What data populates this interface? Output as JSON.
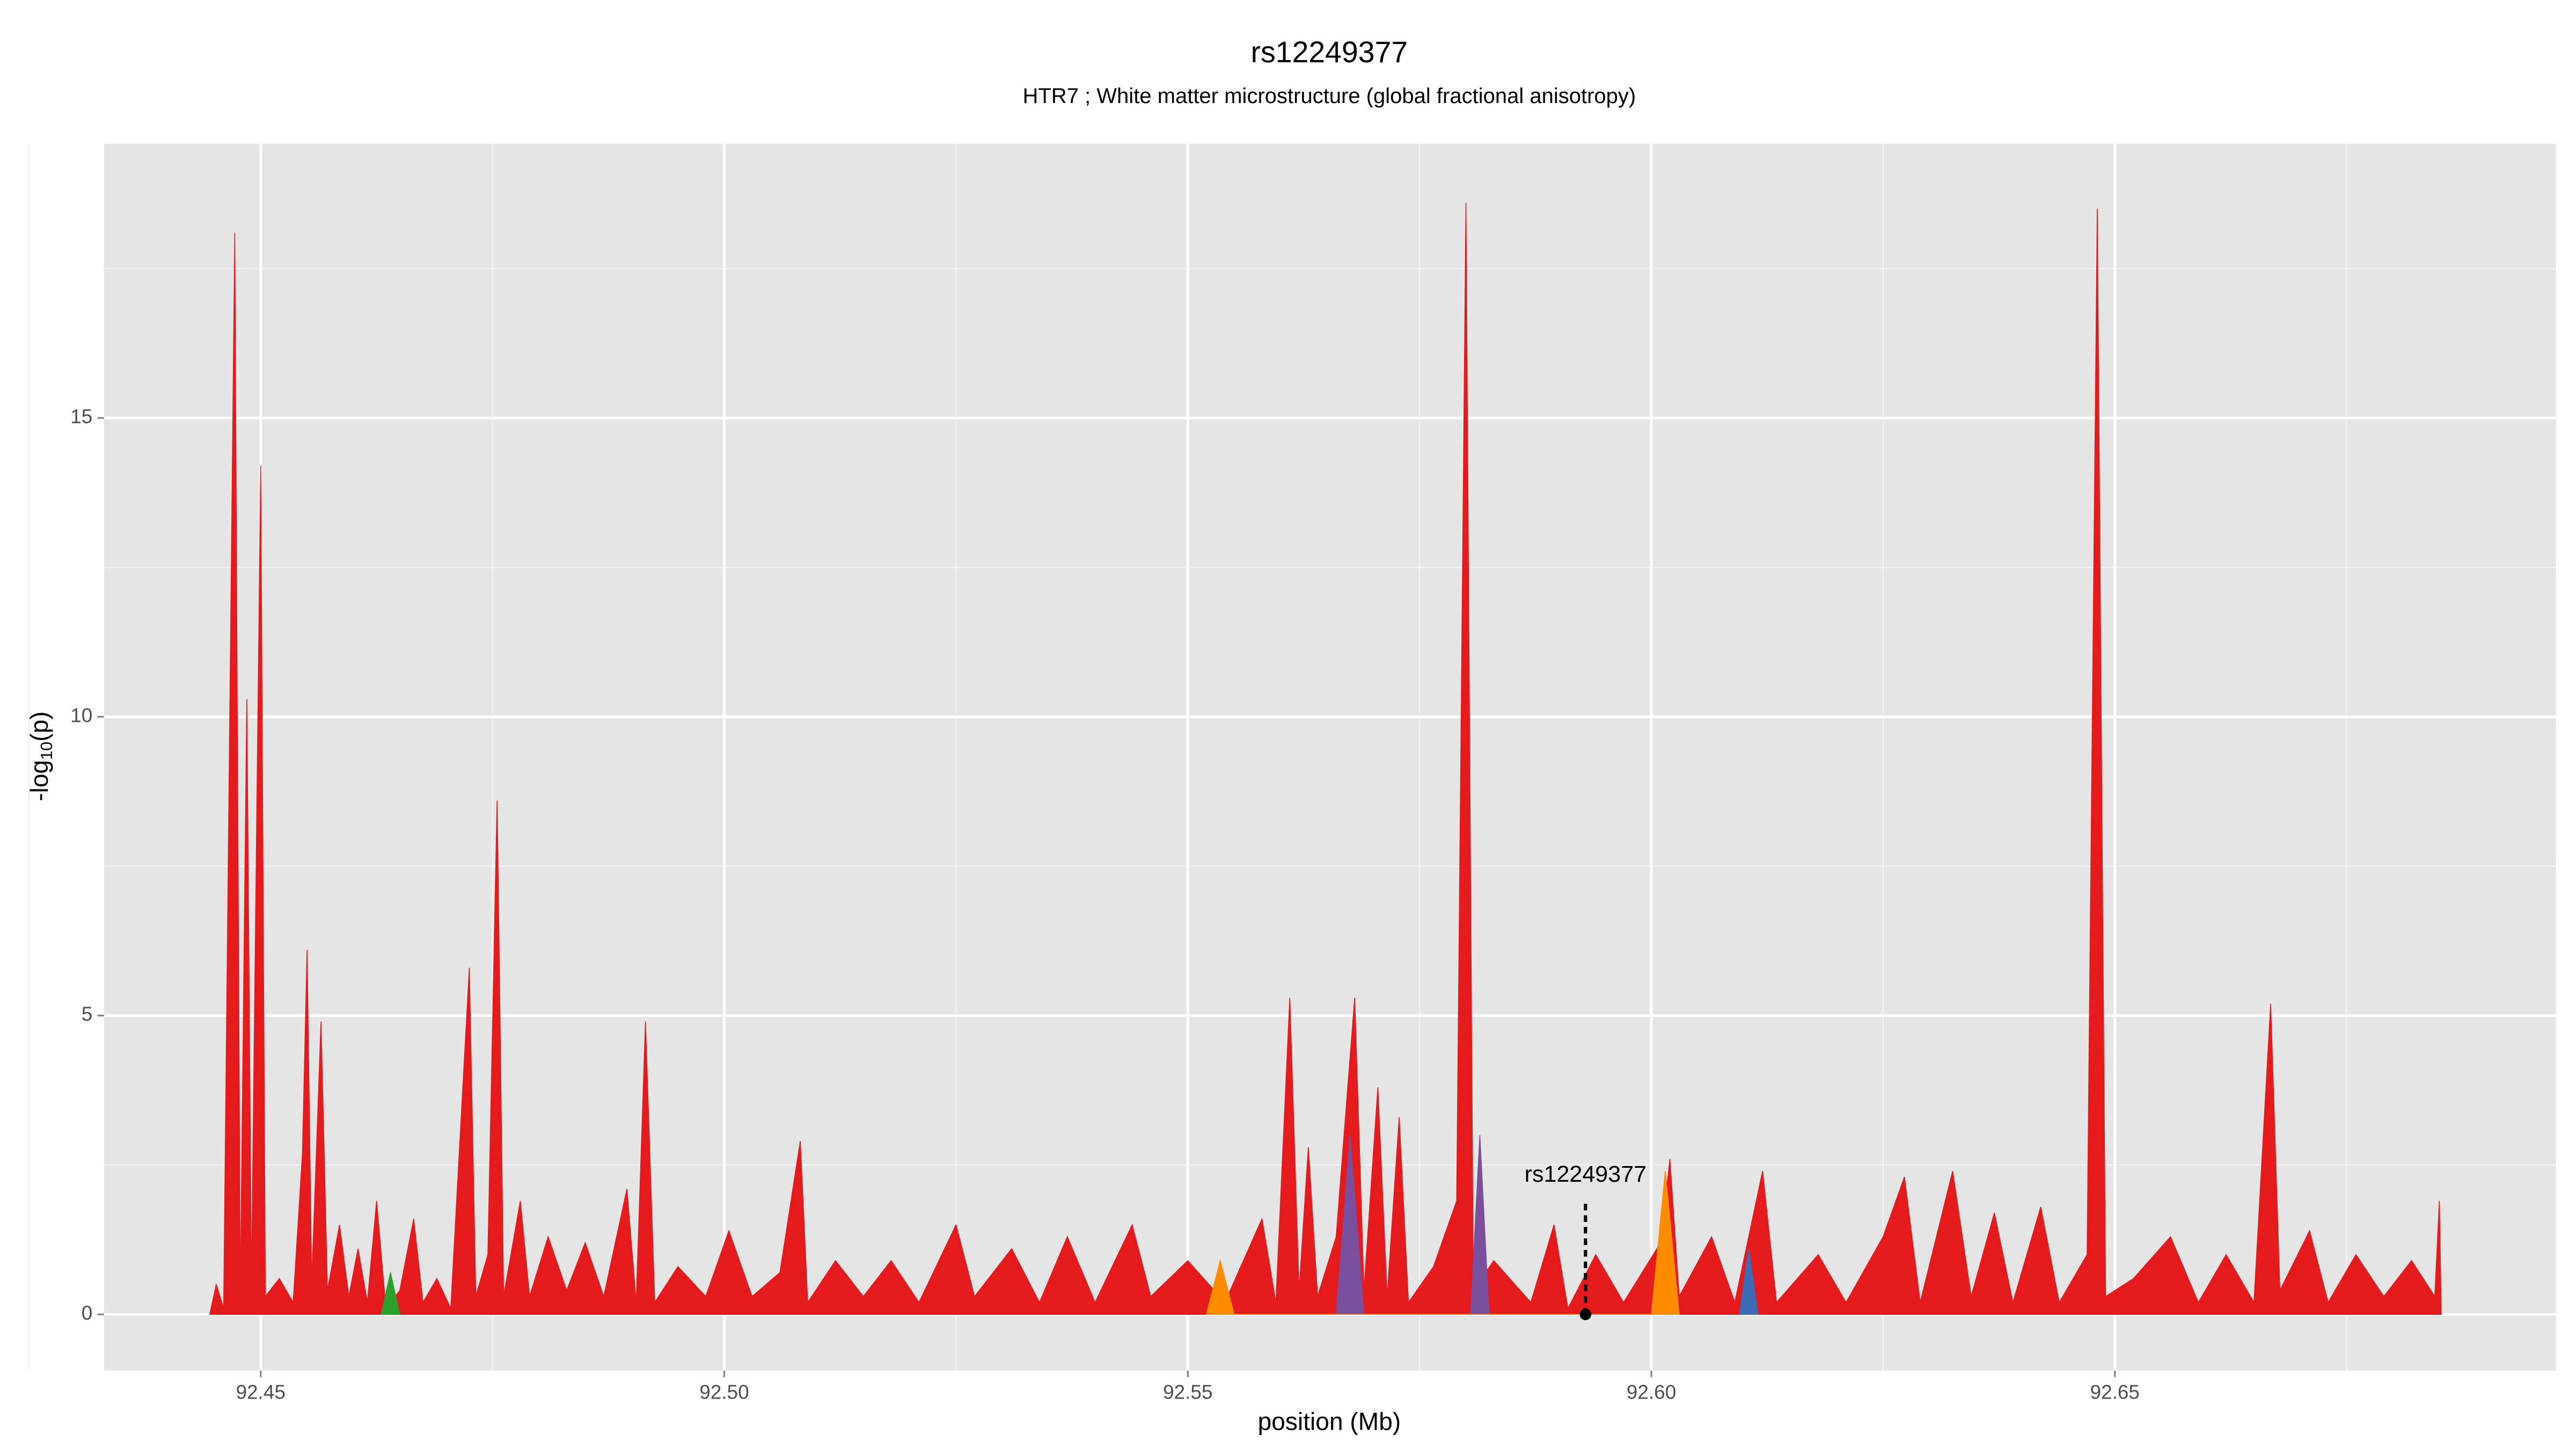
{
  "chart_data": {
    "type": "area",
    "title": "rs12249377",
    "subtitle": "HTR7 ; White matter microstructure (global fractional anisotropy)",
    "xlabel": "position (Mb)",
    "ylabel": {
      "base": "-log",
      "sub": "10",
      "tail": "(p)"
    },
    "xlim": [
      92.4331,
      92.6976
    ],
    "ylim": [
      -0.94,
      19.59
    ],
    "xticks": [
      92.45,
      {
        "value": 92.5,
        "label": "92.50"
      },
      92.55,
      {
        "value": 92.6,
        "label": "92.60"
      },
      92.65
    ],
    "yticks": [
      0,
      5,
      10,
      15
    ],
    "x_minor_ticks": [
      92.425,
      92.475,
      92.525,
      92.575,
      92.625,
      92.675
    ],
    "y_minor_ticks": [
      2.5,
      7.5,
      12.5,
      17.5
    ],
    "grid": true,
    "background": "#e5e5e5",
    "series": [
      {
        "color": "#e41a1c",
        "x": [
          92.4445,
          92.4452,
          92.446,
          92.4472,
          92.4478,
          92.4485,
          92.449,
          92.45,
          92.4505,
          92.452,
          92.4535,
          92.4545,
          92.455,
          92.4555,
          92.4565,
          92.4572,
          92.4585,
          92.4595,
          92.4605,
          92.4615,
          92.4625,
          92.4635,
          92.465,
          92.4665,
          92.4675,
          92.469,
          92.4705,
          92.4725,
          92.4732,
          92.4745,
          92.4755,
          92.4762,
          92.478,
          92.479,
          92.481,
          92.483,
          92.485,
          92.487,
          92.4895,
          92.4905,
          92.4915,
          92.4925,
          92.495,
          92.498,
          92.5005,
          92.503,
          92.506,
          92.5082,
          92.509,
          92.512,
          92.515,
          92.518,
          92.521,
          92.525,
          92.527,
          92.531,
          92.534,
          92.537,
          92.54,
          92.544,
          92.546,
          92.55,
          92.554,
          92.558,
          92.5595,
          92.561,
          92.562,
          92.563,
          92.564,
          92.566,
          92.568,
          92.569,
          92.5705,
          92.5715,
          92.5728,
          92.5738,
          92.5765,
          92.579,
          92.58,
          92.5808,
          92.583,
          92.587,
          92.5895,
          92.591,
          92.594,
          92.597,
          92.601,
          92.602,
          92.603,
          92.6065,
          92.609,
          92.612,
          92.6135,
          92.618,
          92.621,
          92.625,
          92.6273,
          92.629,
          92.6325,
          92.6345,
          92.637,
          92.639,
          92.642,
          92.644,
          92.647,
          92.6481,
          92.649,
          92.652,
          92.656,
          92.659,
          92.662,
          92.665,
          92.6668,
          92.6678,
          92.671,
          92.673,
          92.676,
          92.679,
          92.682,
          92.6845,
          92.685,
          92.6852
        ],
        "values": [
          0,
          0.5,
          0.1,
          18.1,
          0.3,
          10.3,
          0.5,
          14.2,
          0.3,
          0.6,
          0.2,
          2.7,
          6.1,
          0.5,
          4.9,
          0.4,
          1.5,
          0.3,
          1.1,
          0.2,
          1.9,
          0.1,
          0.4,
          1.6,
          0.2,
          0.6,
          0.1,
          5.8,
          0.3,
          1.0,
          8.6,
          0.3,
          1.9,
          0.3,
          1.3,
          0.4,
          1.2,
          0.3,
          2.1,
          0.2,
          4.9,
          0.2,
          0.8,
          0.3,
          1.4,
          0.3,
          0.7,
          2.9,
          0.2,
          0.9,
          0.3,
          0.9,
          0.2,
          1.5,
          0.3,
          1.1,
          0.2,
          1.3,
          0.2,
          1.5,
          0.3,
          0.9,
          0.2,
          1.6,
          0.2,
          5.3,
          0.4,
          2.8,
          0.3,
          1.3,
          5.3,
          0.4,
          3.8,
          0.3,
          3.3,
          0.2,
          0.8,
          1.9,
          18.6,
          0.4,
          0.9,
          0.2,
          1.5,
          0.1,
          1.0,
          0.2,
          1.2,
          2.6,
          0.3,
          1.3,
          0.2,
          2.4,
          0.2,
          1.0,
          0.2,
          1.3,
          2.3,
          0.2,
          2.4,
          0.3,
          1.7,
          0.2,
          1.8,
          0.2,
          1.0,
          18.5,
          0.3,
          0.6,
          1.3,
          0.2,
          1.0,
          0.2,
          5.2,
          0.4,
          1.4,
          0.2,
          1.0,
          0.3,
          0.9,
          0.3,
          1.9,
          0
        ]
      },
      {
        "color": "#7a4f9e",
        "x": [
          92.566,
          92.5675,
          92.569,
          92.5805,
          92.5815,
          92.5825
        ],
        "values": [
          0,
          3.0,
          0,
          0,
          3.0,
          0
        ]
      },
      {
        "color": "#ff8c00",
        "x": [
          92.552,
          92.5535,
          92.555,
          92.6,
          92.6015,
          92.603
        ],
        "values": [
          0,
          0.9,
          0,
          0,
          2.4,
          0
        ]
      },
      {
        "color": "#2ca02c",
        "x": [
          92.463,
          92.464,
          92.465
        ],
        "values": [
          0,
          0.7,
          0
        ]
      },
      {
        "color": "#3b6bb5",
        "x": [
          92.6095,
          92.6105,
          92.6115
        ],
        "values": [
          0,
          1.1,
          0
        ]
      }
    ],
    "annotations": [
      {
        "text": "rs12249377",
        "x": 92.5929,
        "y": 0
      }
    ]
  }
}
